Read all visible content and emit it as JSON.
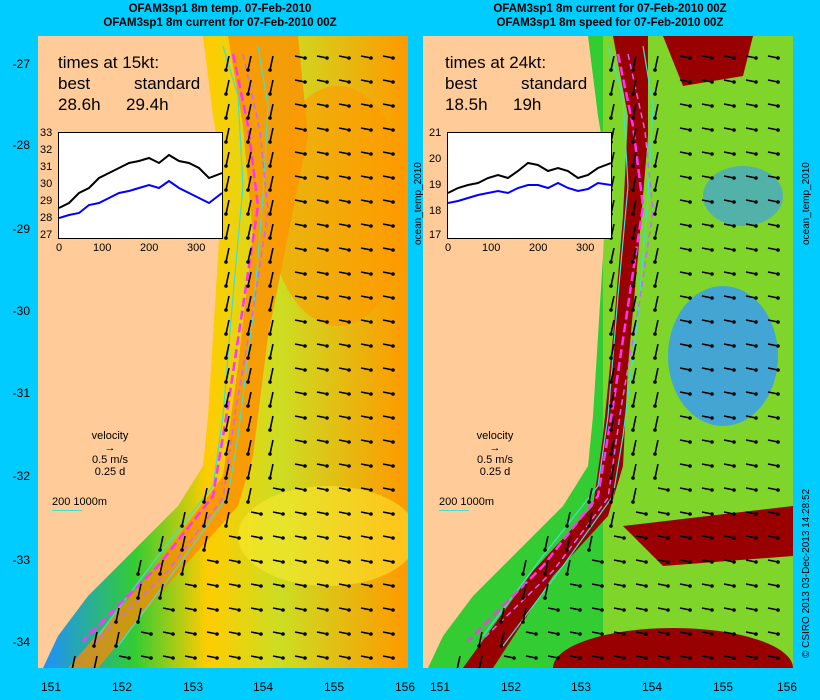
{
  "titles": {
    "left_line1": "OFAM3sp1 8m temp. 07-Feb-2010",
    "left_line2": "OFAM3sp1 8m current for 07-Feb-2010 00Z",
    "right_line1": "OFAM3sp1 8m current for 07-Feb-2010 00Z",
    "right_line2": "OFAM3sp1 8m speed for 07-Feb-2010 00Z"
  },
  "axes": {
    "lat_ticks": [
      "-27",
      "-28",
      "-29",
      "-30",
      "-31",
      "-32",
      "-33",
      "-34"
    ],
    "lon_ticks": [
      "151",
      "152",
      "153",
      "154",
      "155",
      "156"
    ]
  },
  "left_panel": {
    "times_heading": "times at 15kt:",
    "col1_label": "best",
    "col2_label": "standard",
    "col1_value": "28.6h",
    "col2_value": "29.4h",
    "inset_y_ticks": [
      "33",
      "32",
      "31",
      "30",
      "29",
      "28",
      "27"
    ],
    "inset_x_ticks": [
      "0",
      "100",
      "200",
      "300"
    ],
    "velocity_label": "velocity",
    "velocity_speed": "0.5 m/s",
    "velocity_days": "0.25 d",
    "contour_label": "200  1000m",
    "side_label": "ocean_temp_2010",
    "inset_series": {
      "best_color": "#0000ff",
      "standard_color": "#000000"
    }
  },
  "right_panel": {
    "times_heading": "times at 24kt:",
    "col1_label": "best",
    "col2_label": "standard",
    "col1_value": "18.5h",
    "col2_value": "19h",
    "inset_y_ticks": [
      "21",
      "20",
      "19",
      "18",
      "17"
    ],
    "inset_x_ticks": [
      "0",
      "100",
      "200",
      "300"
    ],
    "velocity_label": "velocity",
    "velocity_speed": "0.5 m/s",
    "velocity_days": "0.25 d",
    "contour_label": "200  1000m",
    "side_label": "ocean_temp_2010"
  },
  "credit": "© CSIRO 2013   03-Dec-2013 14:28:52",
  "colors": {
    "background": "#00ccff",
    "land": "#ffcc99",
    "route": "#ff33ff",
    "contour": "#40e0d0"
  }
}
